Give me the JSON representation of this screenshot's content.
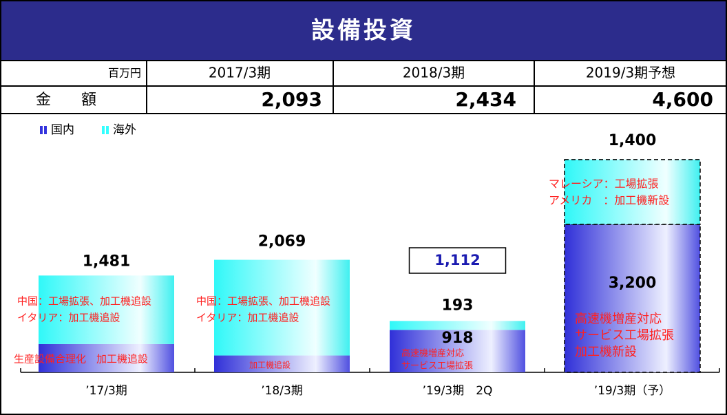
{
  "header": {
    "title": "設備投資"
  },
  "table": {
    "unit": "百万円",
    "columns": [
      "2017/3期",
      "2018/3期",
      "2019/3期予想"
    ],
    "row_label": "金　　額",
    "values": [
      "2,093",
      "2,434",
      "4,600"
    ]
  },
  "chart_data": {
    "type": "stacked_bar",
    "categories": [
      "’17/3期",
      "’18/3期",
      "’19/3期　2Q",
      "’19/3期（予）"
    ],
    "series": [
      {
        "name": "国内",
        "color": "#3333dd",
        "values": [
          612,
          364,
          918,
          3200
        ],
        "value_labels": [
          "612",
          "364",
          "918",
          "3,200"
        ]
      },
      {
        "name": "海外",
        "color": "#33ffff",
        "values": [
          1481,
          2069,
          193,
          1400
        ],
        "value_labels": [
          "1,481",
          "2,069",
          "193",
          "1,400"
        ]
      }
    ],
    "totals": [
      {
        "index": 2,
        "value": 1112,
        "label": "1,112"
      }
    ],
    "forecast_index": 3,
    "annotations": [
      "中国：工場拡張、加工機追設",
      "イタリア：加工機追設",
      "生産設備合理化　加工機追設",
      "中国：工場拡張、加工機追設",
      "イタリア：加工機追設",
      "加工機追設",
      "高速機増産対応",
      "サービス工場拡張",
      "マレーシア：工場拡張",
      "アメリカ　：加工機新設",
      "高速機増産対応",
      "サービス工場拡張",
      "加工機新設"
    ],
    "annotation_color": "#ff2020"
  }
}
